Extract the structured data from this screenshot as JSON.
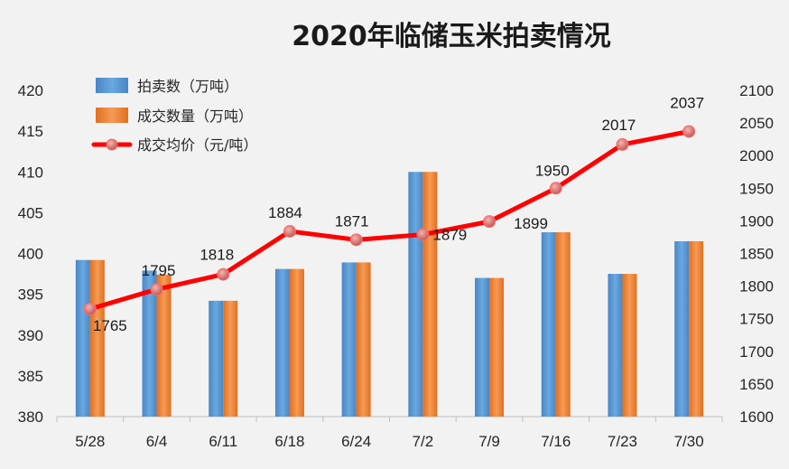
{
  "chart_data": {
    "type": "bar",
    "title": "2020年临储玉米拍卖情况",
    "categories": [
      "5/28",
      "6/4",
      "6/11",
      "6/18",
      "6/24",
      "7/2",
      "7/9",
      "7/16",
      "7/23",
      "7/30"
    ],
    "series": [
      {
        "name": "拍卖数（万吨）",
        "type": "bar",
        "axis": "left",
        "color": "#5b9bd5",
        "values": [
          399.2,
          397.9,
          394.2,
          398.1,
          398.9,
          410.0,
          397.0,
          402.6,
          397.5,
          401.5
        ]
      },
      {
        "name": "成交数量（万吨）",
        "type": "bar",
        "axis": "left",
        "color": "#ed7d31",
        "values": [
          399.2,
          397.4,
          394.2,
          398.1,
          398.9,
          410.0,
          397.0,
          402.6,
          397.5,
          401.5
        ]
      },
      {
        "name": "成交均价（元/吨）",
        "type": "line",
        "axis": "right",
        "color": "#ff0000",
        "marker_color": "#d9534f",
        "values": [
          1765,
          1795,
          1818,
          1884,
          1871,
          1879,
          1899,
          1950,
          2017,
          2037
        ],
        "labels": [
          "1765",
          "1795",
          "1818",
          "1884",
          "1871",
          "1879",
          "1899",
          "1950",
          "2017",
          "2037"
        ]
      }
    ],
    "y_left": {
      "min": 380,
      "max": 420,
      "step": 5,
      "ticks": [
        "380",
        "385",
        "390",
        "395",
        "400",
        "405",
        "410",
        "415",
        "420"
      ]
    },
    "y_right": {
      "min": 1600,
      "max": 2100,
      "step": 50,
      "ticks": [
        "1600",
        "1650",
        "1700",
        "1750",
        "1800",
        "1850",
        "1900",
        "1950",
        "2000",
        "2050",
        "2100"
      ]
    },
    "grid": false,
    "legend": "top-left"
  }
}
